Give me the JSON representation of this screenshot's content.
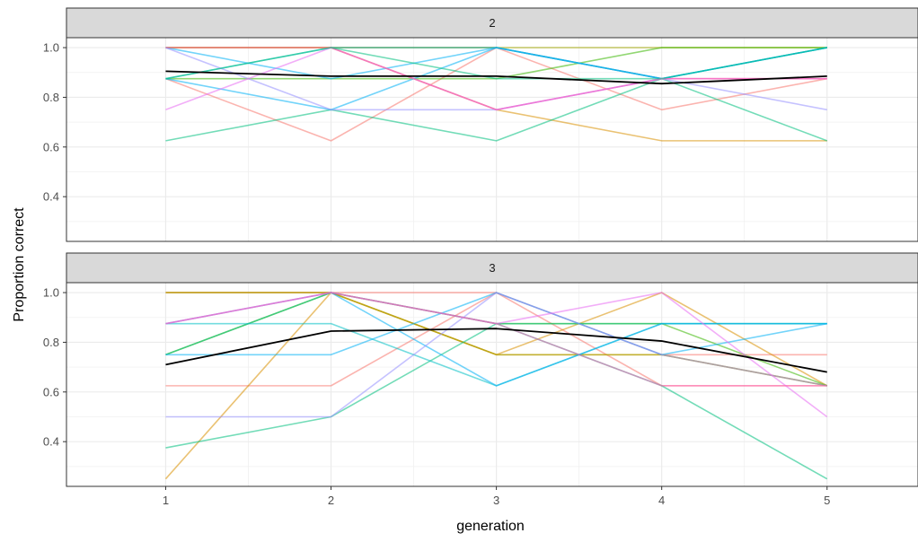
{
  "chart_data": {
    "type": "line",
    "xlabel": "generation",
    "ylabel": "Proportion correct",
    "x_ticks": [
      1,
      2,
      3,
      4,
      5
    ],
    "y_ticks": [
      0.4,
      0.6,
      0.8,
      1.0
    ],
    "y_tick_labels": [
      "0.4",
      "0.6",
      "0.8",
      "1.0"
    ],
    "x_tick_labels": [
      "1",
      "2",
      "3",
      "4",
      "5"
    ],
    "xlim": [
      0.4,
      5.55
    ],
    "ylim": [
      0.22,
      1.04
    ],
    "grid": true,
    "mean_color": "#000000",
    "panels": [
      {
        "label": "2",
        "series": [
          {
            "color": "#F8766D",
            "values": [
              1.0,
              1.0,
              1.0,
              0.75,
              0.875
            ]
          },
          {
            "color": "#F8766D",
            "values": [
              0.875,
              0.625,
              1.0,
              0.875,
              0.875
            ]
          },
          {
            "color": "#D89000",
            "values": [
              1.0,
              1.0,
              0.75,
              0.625,
              0.625
            ]
          },
          {
            "color": "#A3A500",
            "values": [
              1.0,
              1.0,
              1.0,
              1.0,
              1.0
            ]
          },
          {
            "color": "#39B600",
            "values": [
              0.875,
              0.875,
              0.875,
              1.0,
              1.0
            ]
          },
          {
            "color": "#00BF7D",
            "values": [
              0.625,
              0.75,
              0.625,
              0.875,
              0.625
            ]
          },
          {
            "color": "#00BFC4",
            "values": [
              0.875,
              1.0,
              1.0,
              0.875,
              1.0
            ]
          },
          {
            "color": "#00B0F6",
            "values": [
              1.0,
              0.875,
              1.0,
              0.875,
              1.0
            ]
          },
          {
            "color": "#00B0F6",
            "values": [
              0.875,
              0.75,
              1.0,
              0.875,
              1.0
            ]
          },
          {
            "color": "#9590FF",
            "values": [
              1.0,
              0.75,
              0.75,
              0.875,
              0.75
            ]
          },
          {
            "color": "#E76BF3",
            "values": [
              0.75,
              1.0,
              0.75,
              0.875,
              0.875
            ]
          },
          {
            "color": "#FF62BC",
            "values": [
              1.0,
              1.0,
              0.75,
              0.875,
              0.875
            ]
          },
          {
            "color": "#00BF7D",
            "values": [
              0.875,
              1.0,
              0.875,
              0.875,
              1.0
            ]
          }
        ],
        "mean": [
          0.905,
          0.885,
          0.885,
          0.855,
          0.885
        ]
      },
      {
        "label": "3",
        "series": [
          {
            "color": "#F8766D",
            "values": [
              0.625,
              0.625,
              1.0,
              0.625,
              0.625
            ]
          },
          {
            "color": "#F8766D",
            "values": [
              1.0,
              1.0,
              1.0,
              0.75,
              0.75
            ]
          },
          {
            "color": "#D89000",
            "values": [
              1.0,
              1.0,
              0.75,
              0.75,
              0.625
            ]
          },
          {
            "color": "#D89000",
            "values": [
              0.25,
              1.0,
              0.75,
              1.0,
              0.625
            ]
          },
          {
            "color": "#A3A500",
            "values": [
              1.0,
              1.0,
              0.75,
              0.75,
              0.625
            ]
          },
          {
            "color": "#39B600",
            "values": [
              0.75,
              1.0,
              0.875,
              0.875,
              0.625
            ]
          },
          {
            "color": "#00BF7D",
            "values": [
              0.375,
              0.5,
              0.875,
              0.875,
              0.875
            ]
          },
          {
            "color": "#00BF7D",
            "values": [
              0.75,
              1.0,
              0.875,
              0.625,
              0.25
            ]
          },
          {
            "color": "#00BFC4",
            "values": [
              0.875,
              0.875,
              0.625,
              0.875,
              0.875
            ]
          },
          {
            "color": "#00B0F6",
            "values": [
              0.75,
              0.75,
              1.0,
              0.75,
              0.875
            ]
          },
          {
            "color": "#00B0F6",
            "values": [
              0.875,
              1.0,
              0.625,
              0.875,
              0.875
            ]
          },
          {
            "color": "#9590FF",
            "values": [
              0.5,
              0.5,
              1.0,
              0.75,
              0.625
            ]
          },
          {
            "color": "#E76BF3",
            "values": [
              0.875,
              1.0,
              0.875,
              1.0,
              0.5
            ]
          },
          {
            "color": "#FF62BC",
            "values": [
              0.875,
              1.0,
              0.875,
              0.625,
              0.625
            ]
          }
        ],
        "mean": [
          0.71,
          0.845,
          0.855,
          0.805,
          0.68
        ]
      }
    ]
  }
}
